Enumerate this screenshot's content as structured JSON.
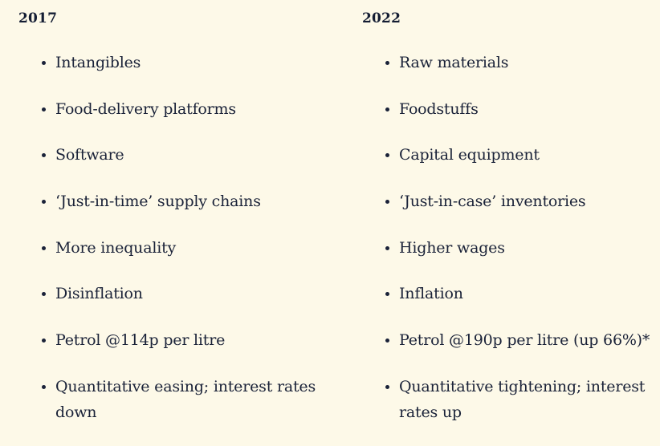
{
  "page": {
    "background_color": "#fdf9e8",
    "text_color": "#1a2238"
  },
  "columns": [
    {
      "heading": "2017",
      "items": [
        "Intangibles",
        "Food-delivery platforms",
        "Software",
        "‘Just-in-time’ supply chains",
        "More inequality",
        "Disinflation",
        "Petrol @114p per litre",
        "Quantitative easing; interest rates down"
      ]
    },
    {
      "heading": "2022",
      "items": [
        "Raw materials",
        "Foodstuffs",
        "Capital equipment",
        "‘Just-in-case’ inventories",
        "Higher wages",
        "Inflation",
        "Petrol @190p per litre (up 66%)*",
        "Quantitative tightening; interest rates up"
      ]
    }
  ]
}
